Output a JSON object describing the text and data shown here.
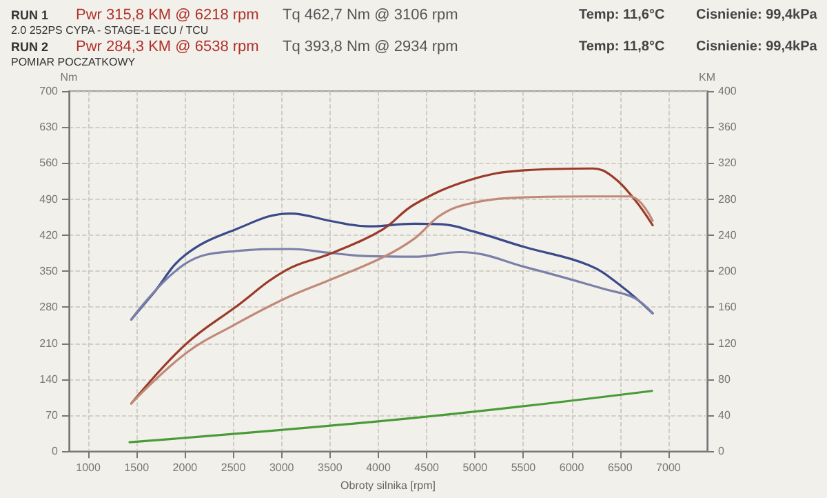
{
  "chart_data": {
    "type": "line",
    "annotations": [
      "RUN 1",
      "Pwr 315,8 KM @ 6218 rpm",
      "Tq 462,7 Nm @ 3106 rpm",
      "Temp: 11,6°C",
      "Cisnienie: 99,4kPa",
      "2.0 252PS CYPA - STAGE-1 ECU / TCU",
      "RUN 2",
      "Pwr 284,3 KM @ 6538 rpm",
      "Tq 393,8 Nm @ 2934 rpm",
      "Temp: 11,8°C",
      "Cisnienie: 99,4kPa",
      "POMIAR POCZATKOWY"
    ],
    "xlabel": "Obroty silnika [rpm]",
    "ylabel": "Nm",
    "y2label": "KM",
    "xlim": [
      800,
      7400
    ],
    "xticks": [
      1000,
      1500,
      2000,
      2500,
      3000,
      3500,
      4000,
      4500,
      5000,
      5500,
      6000,
      6500,
      7000
    ],
    "ylim": [
      0,
      700
    ],
    "yticks": [
      0,
      70,
      140,
      210,
      280,
      350,
      420,
      490,
      560,
      630,
      700
    ],
    "y2lim": [
      0,
      400
    ],
    "y2ticks": [
      0,
      40,
      80,
      120,
      160,
      200,
      240,
      280,
      320,
      360,
      400
    ],
    "grid": true,
    "series": [
      {
        "color": "#3a4a8a",
        "x": [
          1445,
          1669,
          2000,
          2522,
          3091,
          3518,
          3898,
          4371,
          4656,
          4987,
          5509,
          6173,
          6505,
          6837
        ],
        "values": [
          256,
          306,
          381,
          431,
          462,
          447,
          437,
          442,
          441,
          427,
          397,
          362,
          322,
          268
        ]
      },
      {
        "color": "#7a80a8",
        "x": [
          1445,
          2000,
          2522,
          3091,
          3518,
          3898,
          4371,
          4845,
          5556,
          6363,
          6647,
          6837
        ],
        "values": [
          256,
          364,
          389,
          393,
          385,
          379,
          378,
          387,
          356,
          314,
          298,
          268
        ]
      },
      {
        "color": "#9a3a2a",
        "axis": "y2",
        "x": [
          1445,
          2000,
          2522,
          3044,
          3518,
          4040,
          4371,
          4940,
          5509,
          6220,
          6410,
          6647,
          6837
        ],
        "values": [
          53,
          118,
          160,
          201,
          220,
          246,
          274,
          301,
          312,
          314,
          306,
          280,
          251
        ]
      },
      {
        "color": "#c08a78",
        "axis": "y2",
        "x": [
          1445,
          2000,
          2522,
          3044,
          3518,
          4040,
          4371,
          4656,
          4987,
          5509,
          6173,
          6600,
          6837
        ],
        "values": [
          53,
          108,
          141,
          170,
          191,
          215,
          236,
          263,
          276,
          282,
          283,
          283,
          256
        ]
      },
      {
        "color": "#4a9a3a",
        "axis": "y2",
        "x": [
          1427,
          4371,
          6830
        ],
        "values": [
          10,
          37,
          67
        ]
      }
    ]
  }
}
